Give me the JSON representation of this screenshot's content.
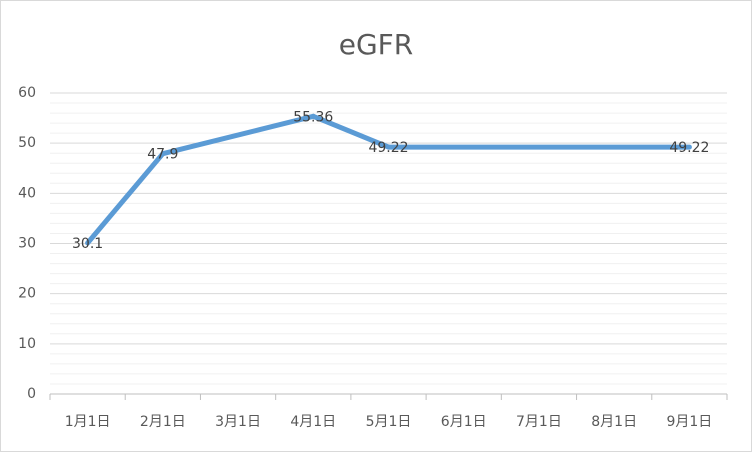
{
  "chart_data": {
    "type": "line",
    "title": "eGFR",
    "categories": [
      "1月1日",
      "2月1日",
      "3月1日",
      "4月1日",
      "5月1日",
      "6月1日",
      "7月1日",
      "8月1日",
      "9月1日"
    ],
    "series": [
      {
        "color": "#5b9bd5",
        "values": [
          30.1,
          47.9,
          null,
          55.36,
          49.22,
          null,
          null,
          null,
          49.22
        ]
      }
    ],
    "connect_gaps": true,
    "ylim": [
      0,
      60
    ],
    "yticks": [
      0,
      10,
      20,
      30,
      40,
      50,
      60
    ],
    "grid": true,
    "minor_grid": true
  }
}
